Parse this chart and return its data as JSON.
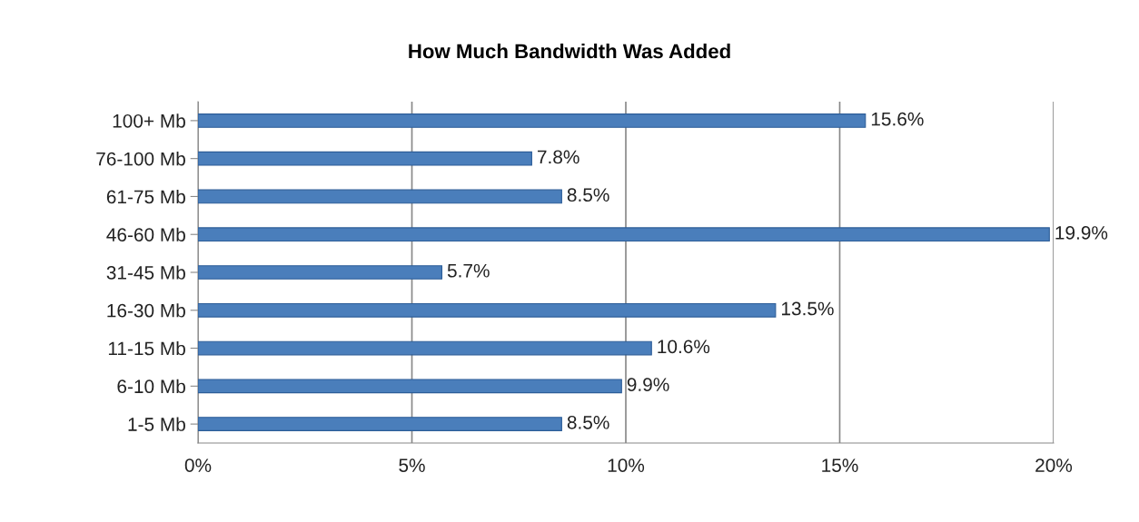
{
  "chart_data": {
    "type": "bar",
    "orientation": "horizontal",
    "title": "How Much Bandwidth Was Added",
    "categories": [
      "100+ Mb",
      "76-100 Mb",
      "61-75 Mb",
      "46-60 Mb",
      "31-45 Mb",
      "16-30 Mb",
      "11-15 Mb",
      "6-10 Mb",
      "1-5 Mb"
    ],
    "values": [
      15.6,
      7.8,
      8.5,
      19.9,
      5.7,
      13.5,
      10.6,
      9.9,
      8.5
    ],
    "value_labels": [
      "15.6%",
      "7.8%",
      "8.5%",
      "19.9%",
      "5.7%",
      "13.5%",
      "10.6%",
      "9.9%",
      "8.5%"
    ],
    "color": "#4a7ebb",
    "xlim": [
      0,
      20
    ],
    "xticks": [
      {
        "value": 0,
        "label": "0%"
      },
      {
        "value": 5,
        "label": "5%"
      },
      {
        "value": 10,
        "label": "10%"
      },
      {
        "value": 15,
        "label": "15%"
      },
      {
        "value": 20,
        "label": "20%"
      }
    ],
    "grid": "x",
    "legend": false
  }
}
